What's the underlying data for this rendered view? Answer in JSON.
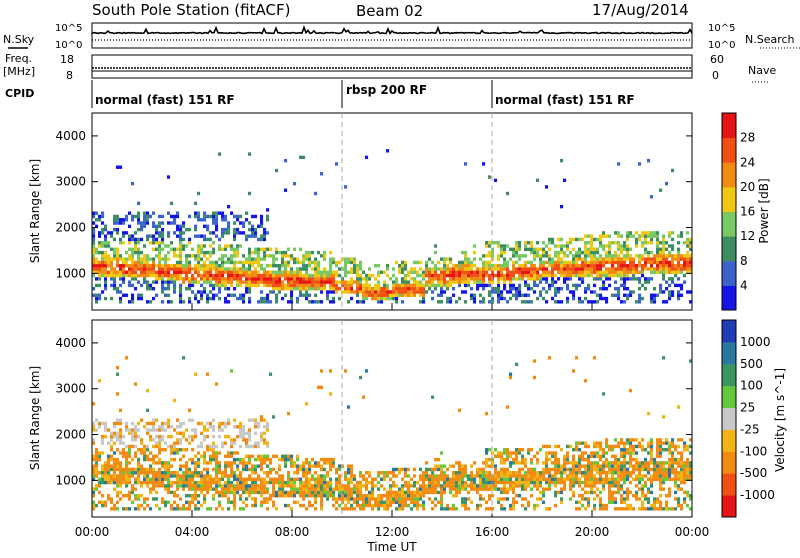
{
  "header": {
    "station": "South Pole Station (fitACF)",
    "beam": "Beam 02",
    "date": "17/Aug/2014"
  },
  "noise_panel": {
    "left_label": "N.Sky",
    "right_label": "N.Search",
    "left_ticks": [
      "10^5",
      "10^0"
    ],
    "right_ticks": [
      "10^5",
      "10^0"
    ]
  },
  "freq_panel": {
    "left_label_line1": "Freq.",
    "left_label_line2": "[MHz]",
    "right_label": "Nave",
    "left_ticks": [
      "18",
      "8"
    ],
    "right_ticks": [
      "60",
      "0"
    ]
  },
  "cpid": {
    "label": "CPID",
    "segments": [
      {
        "text": "normal (fast) 151 RF",
        "start_hour": 0,
        "end_hour": 10
      },
      {
        "text": "rbsp 200 RF",
        "start_hour": 10,
        "end_hour": 16
      },
      {
        "text": "normal (fast) 151 RF",
        "start_hour": 16,
        "end_hour": 24
      }
    ]
  },
  "chart_data": [
    {
      "type": "heatmap",
      "name": "power",
      "ylabel": "Slant Range [km]",
      "xlim": [
        0,
        24
      ],
      "ylim": [
        200,
        4500
      ],
      "yticks": [
        1000,
        2000,
        3000,
        4000
      ],
      "colorbar_label": "Power [dB]",
      "colorbar_ticks": [
        "4",
        "8",
        "12",
        "16",
        "20",
        "24",
        "28"
      ],
      "colorbar_colors": [
        "#1414e6",
        "#3c64c8",
        "#3c8c64",
        "#78c864",
        "#f0c814",
        "#f08c14",
        "#f05014",
        "#e61414"
      ],
      "dividers_hours": [
        10,
        16
      ],
      "bands": [
        {
          "x": [
            0,
            24
          ],
          "range_km": [
            [
              900,
              1300
            ],
            [
              850,
              1250
            ],
            [
              800,
              1200
            ],
            [
              750,
              1150
            ],
            [
              700,
              1100
            ],
            [
              650,
              1050
            ],
            [
              600,
              1000
            ],
            [
              600,
              950
            ],
            [
              500,
              800
            ],
            [
              400,
              700
            ],
            [
              450,
              750
            ],
            [
              700,
              1100
            ],
            [
              750,
              1150
            ],
            [
              750,
              1150
            ],
            [
              800,
              1200
            ],
            [
              850,
              1250
            ],
            [
              900,
              1300
            ],
            [
              900,
              1350
            ],
            [
              950,
              1400
            ],
            [
              950,
              1400
            ]
          ],
          "level": "high"
        }
      ]
    },
    {
      "type": "heatmap",
      "name": "velocity",
      "xlabel": "Time UT",
      "ylabel": "Slant Range [km]",
      "xlim": [
        0,
        24
      ],
      "ylim": [
        200,
        4500
      ],
      "xticks": [
        "00:00",
        "04:00",
        "08:00",
        "12:00",
        "16:00",
        "20:00",
        "00:00"
      ],
      "yticks": [
        1000,
        2000,
        3000,
        4000
      ],
      "colorbar_label": "Velocity [m s^-1]",
      "colorbar_ticks": [
        "1000",
        "500",
        "100",
        "25",
        "-25",
        "-100",
        "-500",
        "-1000"
      ],
      "colorbar_colors": [
        "#1e3cb4",
        "#2878a0",
        "#3c9664",
        "#64c83c",
        "#c8c8c8",
        "#f0b414",
        "#f08c14",
        "#f05014",
        "#e61414"
      ],
      "dividers_hours": [
        10,
        16
      ]
    }
  ]
}
